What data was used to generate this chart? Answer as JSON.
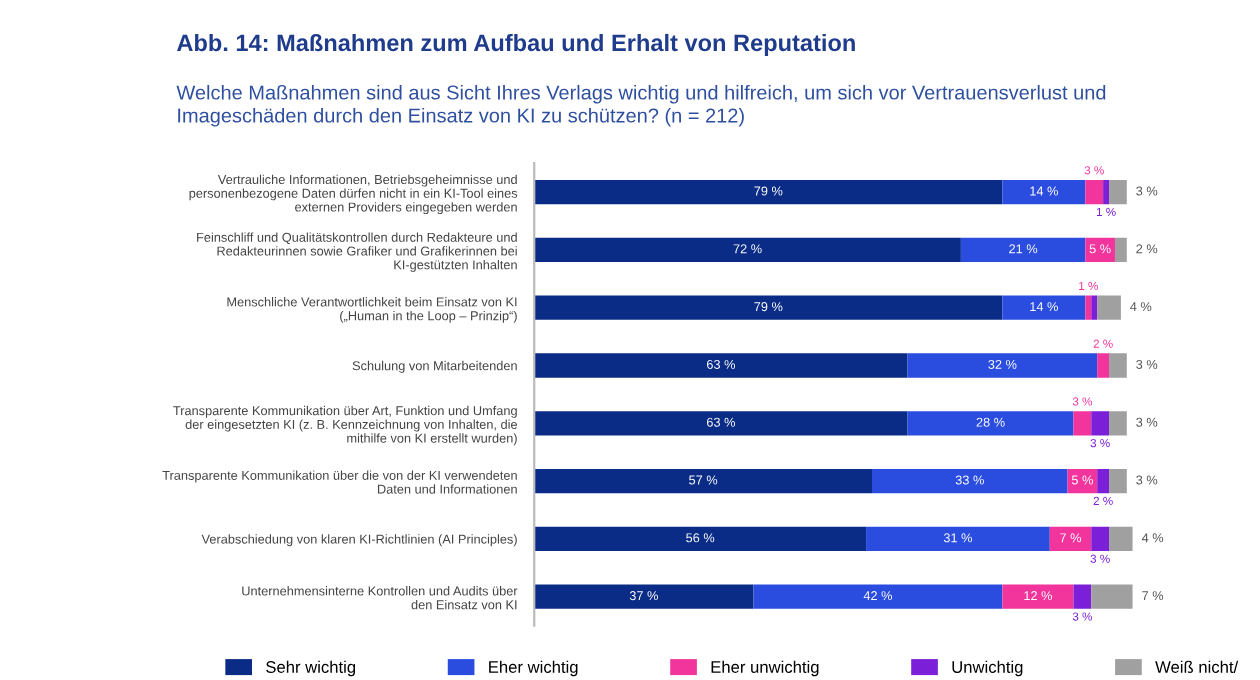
{
  "chart_data": {
    "type": "bar",
    "orientation": "horizontal",
    "stacked": true,
    "tick_labels": "y",
    "grid": false,
    "legend": "bottom",
    "title": "Abb. 14: Maßnahmen zum Aufbau und Erhalt von Reputation",
    "subtitle": "Welche Maßnahmen sind aus Sicht Ihres Verlags wichtig und hilfreich, um sich vor Vertrauensverlust und\nImageschäden durch den Einsatz von KI zu schützen? (n = 212)",
    "categories": [
      "Vertrauliche Informationen, Betriebsgeheimnisse und\npersonenbezogene Daten dürfen nicht in ein KI-Tool eines\nexternen Providers eingegeben werden",
      "Feinschliff und Qualitätskontrollen durch Redakteure und\nRedakteurinnen sowie Grafiker und Grafikerinnen bei\nKI-gestützten Inhalten",
      "Menschliche Verantwortlichkeit beim Einsatz von KI\n(„Human in the Loop – Prinzip“)",
      "Schulung von Mitarbeitenden",
      "Transparente Kommunikation über Art, Funktion und Umfang\nder eingesetzten KI (z. B. Kennzeichnung von Inhalten, die\nmithilfe von KI erstellt wurden)",
      "Transparente Kommunikation über die von der KI verwendeten\nDaten und Informationen",
      "Verabschiedung von klaren KI-Richtlinien (AI Principles)",
      "Unternehmensinterne Kontrollen und Audits über\nden Einsatz von KI"
    ],
    "series": [
      {
        "name": "Sehr wichtig",
        "color": "#0b2c86",
        "values": [
          79,
          72,
          79,
          63,
          63,
          57,
          56,
          37
        ],
        "value_labels": [
          "79 %",
          "72 %",
          "79 %",
          "63 %",
          "63 %",
          "57 %",
          "56 %",
          "37 %"
        ]
      },
      {
        "name": "Eher wichtig",
        "color": "#2a4de0",
        "values": [
          14,
          21,
          14,
          32,
          28,
          33,
          31,
          42
        ],
        "value_labels": [
          "14 %",
          "21 %",
          "14 %",
          "32 %",
          "28 %",
          "33 %",
          "31 %",
          "42 %"
        ]
      },
      {
        "name": "Eher unwichtig",
        "color": "#f2359d",
        "values": [
          3,
          5,
          1,
          2,
          3,
          5,
          7,
          12
        ],
        "value_labels": [
          "3 %",
          "5 %",
          "1 %",
          "2 %",
          "3 %",
          "5 %",
          "7 %",
          "12 %"
        ]
      },
      {
        "name": "Unwichtig",
        "color": "#7b1fd8",
        "values": [
          1,
          0,
          1,
          0,
          3,
          2,
          3,
          3
        ],
        "value_labels": [
          "1 %",
          null,
          null,
          null,
          "3 %",
          "2 %",
          "3 %",
          "3 %"
        ]
      },
      {
        "name": "Weiß nicht/",
        "color": "#a0a0a0",
        "values": [
          3,
          2,
          4,
          3,
          3,
          3,
          4,
          7
        ],
        "value_labels": [
          "3 %",
          "2 %",
          "4 %",
          "3 %",
          "3 %",
          "3 %",
          "4 %",
          "7 %"
        ]
      }
    ]
  }
}
